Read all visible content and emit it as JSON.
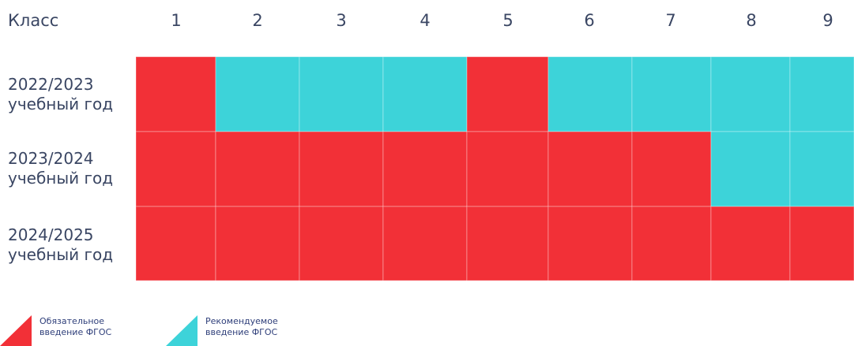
{
  "chart_data": {
    "type": "heatmap",
    "corner_label": "Класс",
    "columns": [
      "1",
      "2",
      "3",
      "4",
      "5",
      "6",
      "7",
      "8",
      "9"
    ],
    "rows": [
      {
        "line1": "2022/2023",
        "line2": "учебный год",
        "cells": [
          "mandatory",
          "recommended",
          "recommended",
          "recommended",
          "mandatory",
          "recommended",
          "recommended",
          "recommended",
          "recommended"
        ]
      },
      {
        "line1": "2023/2024",
        "line2": "учебный год",
        "cells": [
          "mandatory",
          "mandatory",
          "mandatory",
          "mandatory",
          "mandatory",
          "mandatory",
          "mandatory",
          "recommended",
          "recommended"
        ]
      },
      {
        "line1": "2024/2025",
        "line2": "учебный год",
        "cells": [
          "mandatory",
          "mandatory",
          "mandatory",
          "mandatory",
          "mandatory",
          "mandatory",
          "mandatory",
          "mandatory",
          "mandatory"
        ]
      }
    ],
    "legend": [
      {
        "key": "mandatory",
        "line1": "Обязательное",
        "line2": "введение ФГОС",
        "color": "#f23037"
      },
      {
        "key": "recommended",
        "line1": "Рекомендуемое",
        "line2": "введение ФГОС",
        "color": "#3dd3d9"
      }
    ]
  }
}
